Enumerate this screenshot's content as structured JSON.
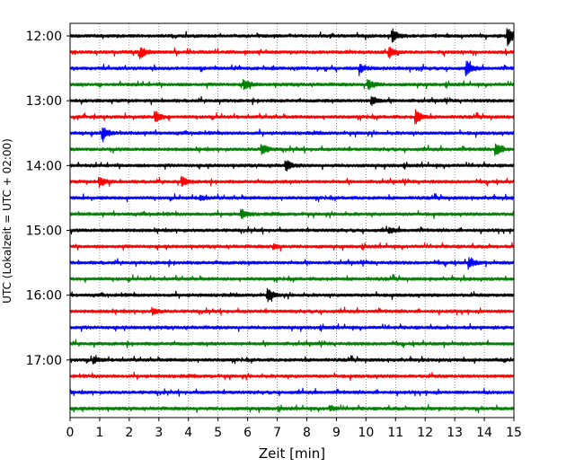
{
  "chart_data": {
    "type": "line",
    "title": "",
    "xlabel": "Zeit  [min]",
    "ylabel": "UTC (Lokalzeit = UTC + 02:00)",
    "xlim": [
      0,
      15
    ],
    "x_ticks": [
      0,
      1,
      2,
      3,
      4,
      5,
      6,
      7,
      8,
      9,
      10,
      11,
      12,
      13,
      14,
      15
    ],
    "y_tick_labels": [
      "12:00",
      "13:00",
      "14:00",
      "15:00",
      "16:00",
      "17:00"
    ],
    "trace_start_utc": "12:00",
    "trace_interval_min": 15,
    "trace_count": 24,
    "grid_x": true,
    "grid_style": "dotted",
    "series_colors": [
      "#000000",
      "#ff0000",
      "#0000ff",
      "#008000"
    ],
    "events": [
      {
        "trace": 0,
        "t_min": 10.9,
        "amp": 0.45
      },
      {
        "trace": 0,
        "t_min": 14.8,
        "amp": 0.6
      },
      {
        "trace": 1,
        "t_min": 2.4,
        "amp": 0.35
      },
      {
        "trace": 1,
        "t_min": 10.8,
        "amp": 0.3
      },
      {
        "trace": 2,
        "t_min": 13.4,
        "amp": 0.5
      },
      {
        "trace": 2,
        "t_min": 9.8,
        "amp": 0.25
      },
      {
        "trace": 3,
        "t_min": 5.9,
        "amp": 0.3
      },
      {
        "trace": 3,
        "t_min": 10.1,
        "amp": 0.35
      },
      {
        "trace": 4,
        "t_min": 10.2,
        "amp": 0.3
      },
      {
        "trace": 5,
        "t_min": 2.9,
        "amp": 0.35
      },
      {
        "trace": 5,
        "t_min": 11.7,
        "amp": 0.45
      },
      {
        "trace": 6,
        "t_min": 1.1,
        "amp": 0.45
      },
      {
        "trace": 7,
        "t_min": 6.5,
        "amp": 0.35
      },
      {
        "trace": 7,
        "t_min": 14.4,
        "amp": 0.45
      },
      {
        "trace": 8,
        "t_min": 7.3,
        "amp": 0.35
      },
      {
        "trace": 9,
        "t_min": 1.0,
        "amp": 0.35
      },
      {
        "trace": 9,
        "t_min": 3.8,
        "amp": 0.3
      },
      {
        "trace": 10,
        "t_min": 4.4,
        "amp": 0.15
      },
      {
        "trace": 11,
        "t_min": 5.8,
        "amp": 0.3
      },
      {
        "trace": 12,
        "t_min": 10.8,
        "amp": 0.15
      },
      {
        "trace": 13,
        "t_min": 6.9,
        "amp": 0.15
      },
      {
        "trace": 14,
        "t_min": 13.5,
        "amp": 0.35
      },
      {
        "trace": 16,
        "t_min": 6.7,
        "amp": 0.4
      },
      {
        "trace": 17,
        "t_min": 2.8,
        "amp": 0.2
      },
      {
        "trace": 20,
        "t_min": 0.8,
        "amp": 0.2
      },
      {
        "trace": 23,
        "t_min": 8.8,
        "amp": 0.15
      }
    ]
  }
}
